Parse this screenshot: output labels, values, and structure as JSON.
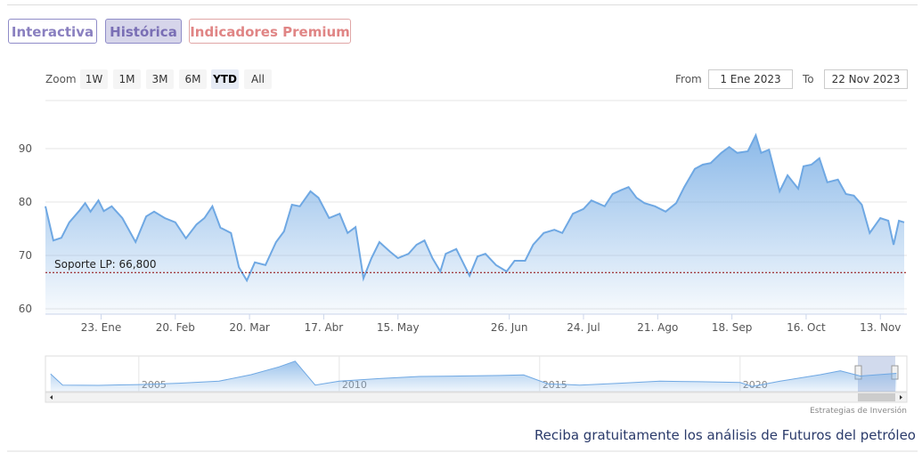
{
  "tabs": [
    "Interactiva",
    "Histórica",
    "Indicadores Premium"
  ],
  "active_tab": 1,
  "range_selector": {
    "label": "Zoom",
    "buttons": [
      "1W",
      "1M",
      "3M",
      "6M",
      "YTD",
      "All"
    ],
    "selected": 4,
    "from_label": "From",
    "from": "1 Ene 2023",
    "to_label": "To",
    "to": "22 Nov 2023"
  },
  "chart_data": {
    "type": "area",
    "color": "#6fa8e3",
    "x": [
      "2023-01-02",
      "2023-01-05",
      "2023-01-08",
      "2023-01-11",
      "2023-01-15",
      "2023-01-17",
      "2023-01-19",
      "2023-01-22",
      "2023-01-24",
      "2023-01-27",
      "2023-01-31",
      "2023-02-05",
      "2023-02-09",
      "2023-02-12",
      "2023-02-16",
      "2023-02-20",
      "2023-02-24",
      "2023-02-28",
      "2023-03-03",
      "2023-03-06",
      "2023-03-09",
      "2023-03-13",
      "2023-03-16",
      "2023-03-19",
      "2023-03-22",
      "2023-03-26",
      "2023-03-30",
      "2023-04-02",
      "2023-04-05",
      "2023-04-08",
      "2023-04-12",
      "2023-04-15",
      "2023-04-19",
      "2023-04-23",
      "2023-04-26",
      "2023-04-29",
      "2023-05-02",
      "2023-05-05",
      "2023-05-08",
      "2023-05-12",
      "2023-05-15",
      "2023-05-19",
      "2023-05-22",
      "2023-05-25",
      "2023-05-28",
      "2023-05-31",
      "2023-06-02",
      "2023-06-06",
      "2023-06-11",
      "2023-06-14",
      "2023-06-17",
      "2023-06-21",
      "2023-06-25",
      "2023-06-28",
      "2023-07-02",
      "2023-07-05",
      "2023-07-09",
      "2023-07-13",
      "2023-07-16",
      "2023-07-20",
      "2023-07-24",
      "2023-07-27",
      "2023-08-01",
      "2023-08-04",
      "2023-08-07",
      "2023-08-10",
      "2023-08-13",
      "2023-08-16",
      "2023-08-20",
      "2023-08-24",
      "2023-08-28",
      "2023-08-31",
      "2023-09-04",
      "2023-09-07",
      "2023-09-10",
      "2023-09-14",
      "2023-09-17",
      "2023-09-20",
      "2023-09-24",
      "2023-09-27",
      "2023-09-29",
      "2023-10-02",
      "2023-10-06",
      "2023-10-09",
      "2023-10-13",
      "2023-10-15",
      "2023-10-18",
      "2023-10-21",
      "2023-10-24",
      "2023-10-28",
      "2023-10-31",
      "2023-11-03",
      "2023-11-06",
      "2023-11-09",
      "2023-11-13",
      "2023-11-16",
      "2023-11-18",
      "2023-11-20",
      "2023-11-22"
    ],
    "values": [
      79.2,
      72.8,
      73.3,
      76.2,
      78.5,
      79.8,
      78.2,
      80.3,
      78.3,
      79.2,
      77,
      72.5,
      77.3,
      78.2,
      77,
      76.2,
      73.2,
      75.8,
      77,
      79.2,
      75.2,
      74.2,
      67.8,
      65.3,
      68.7,
      68.2,
      72.5,
      74.5,
      79.5,
      79.2,
      82,
      80.8,
      77,
      77.8,
      74.2,
      75.3,
      65.7,
      69.5,
      72.5,
      70.7,
      69.5,
      70.3,
      72,
      72.8,
      69.5,
      67,
      70.3,
      71.2,
      66.2,
      69.8,
      70.3,
      68.2,
      67,
      69,
      69,
      72,
      74.2,
      74.8,
      74.2,
      77.8,
      78.7,
      80.3,
      79.2,
      81.5,
      82.2,
      82.8,
      80.8,
      79.8,
      79.2,
      78.2,
      79.8,
      82.8,
      86.2,
      87,
      87.3,
      89.2,
      90.3,
      89.2,
      89.5,
      92.5,
      89.2,
      89.8,
      82,
      85,
      82.5,
      86.7,
      87,
      88.2,
      83.7,
      84.2,
      81.5,
      81.2,
      79.5,
      74.2,
      77,
      76.5,
      72,
      76.5,
      76.2
    ],
    "xlim": [
      "2023-01-02",
      "2023-11-23"
    ],
    "xticks": [
      {
        "value": "2023-01-23",
        "label": "23. Ene"
      },
      {
        "value": "2023-02-20",
        "label": "20. Feb"
      },
      {
        "value": "2023-03-20",
        "label": "20. Mar"
      },
      {
        "value": "2023-04-17",
        "label": "17. Abr"
      },
      {
        "value": "2023-05-15",
        "label": "15. May"
      },
      {
        "value": "2023-06-26",
        "label": "26. Jun"
      },
      {
        "value": "2023-07-24",
        "label": "24. Jul"
      },
      {
        "value": "2023-08-21",
        "label": "21. Ago"
      },
      {
        "value": "2023-09-18",
        "label": "18. Sep"
      },
      {
        "value": "2023-10-16",
        "label": "16. Oct"
      },
      {
        "value": "2023-11-13",
        "label": "13. Nov"
      }
    ],
    "ylim": [
      59,
      99
    ],
    "yticks": [
      60,
      70,
      80,
      90
    ],
    "grid": true,
    "annotation": {
      "text": "Soporte LP: 66,800",
      "value": 66.8,
      "color": "#8b0000"
    }
  },
  "navigator": {
    "x": [
      2002.8,
      2003.1,
      2004,
      2005,
      2006,
      2007,
      2007.8,
      2008.5,
      2008.9,
      2009.4,
      2010,
      2011,
      2012,
      2013,
      2014,
      2014.6,
      2015.2,
      2016,
      2017,
      2018,
      2019,
      2020,
      2020.3,
      2021,
      2022,
      2022.5,
      2023,
      2023.9
    ],
    "values": [
      88,
      45,
      44,
      47,
      52,
      60,
      85,
      115,
      137,
      45,
      60,
      70,
      78,
      80,
      82,
      84,
      50,
      45,
      52,
      60,
      58,
      55,
      40,
      60,
      85,
      100,
      80,
      90
    ],
    "xlim": [
      2002.67,
      2024.16
    ],
    "ylim": [
      20,
      150
    ],
    "xticks": [
      2005,
      2010,
      2015,
      2020
    ],
    "color": "#6fa8e3"
  },
  "credit": "Estrategias de Inversión",
  "footer_link": "Reciba gratuitamente los análisis de Futuros del petróleo"
}
